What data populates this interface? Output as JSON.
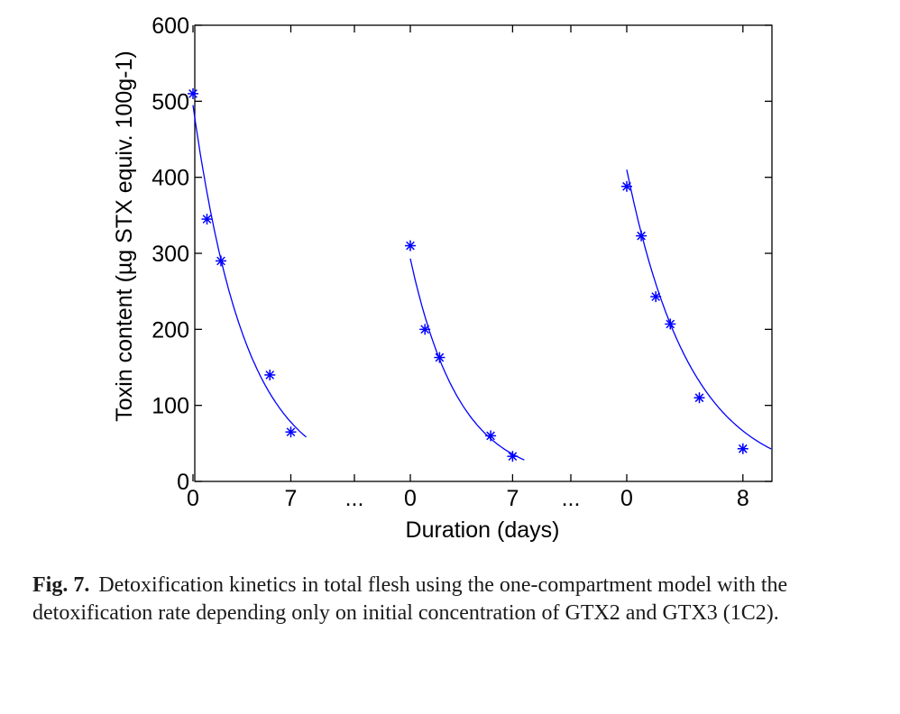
{
  "chart_data": {
    "type": "scatter",
    "ylabel": "Toxin content (µg STX equiv. 100g-1)",
    "xlabel": "Duration (days)",
    "ylim": [
      0,
      600
    ],
    "yticks": [
      0,
      100,
      200,
      300,
      400,
      500,
      600
    ],
    "grid": false,
    "x_segment_tick_labels": [
      "0",
      "7",
      "...",
      "0",
      "7",
      "...",
      "0",
      "8"
    ],
    "segments": [
      {
        "x_tick_labels": [
          "0",
          "7"
        ],
        "days": [
          0,
          1,
          2,
          5.5,
          7
        ],
        "values": [
          510,
          345,
          290,
          140,
          65
        ],
        "fit": {
          "c0": 495,
          "k": 0.264,
          "x_end": 8.1
        }
      },
      {
        "x_tick_labels": [
          "0",
          "7"
        ],
        "days": [
          0,
          1,
          2,
          5.5,
          7
        ],
        "values": [
          310,
          200,
          163,
          60,
          33
        ],
        "fit": {
          "c0": 293,
          "k": 0.3,
          "x_end": 7.8
        }
      },
      {
        "x_tick_labels": [
          "0",
          "8"
        ],
        "days": [
          0,
          1,
          2,
          3,
          5,
          8
        ],
        "values": [
          388,
          323,
          243,
          207,
          110,
          43
        ],
        "fit": {
          "c0": 410,
          "k": 0.2275,
          "x_end": 10.2
        }
      }
    ],
    "colors": {
      "series": "#0000ff",
      "axes": "#000000"
    }
  },
  "caption": {
    "label": "Fig. 7.",
    "text": "Detoxification kinetics in total flesh using the one-compartment model with the detoxification rate depending only on initial concentration of GTX2 and GTX3 (1C2)."
  }
}
